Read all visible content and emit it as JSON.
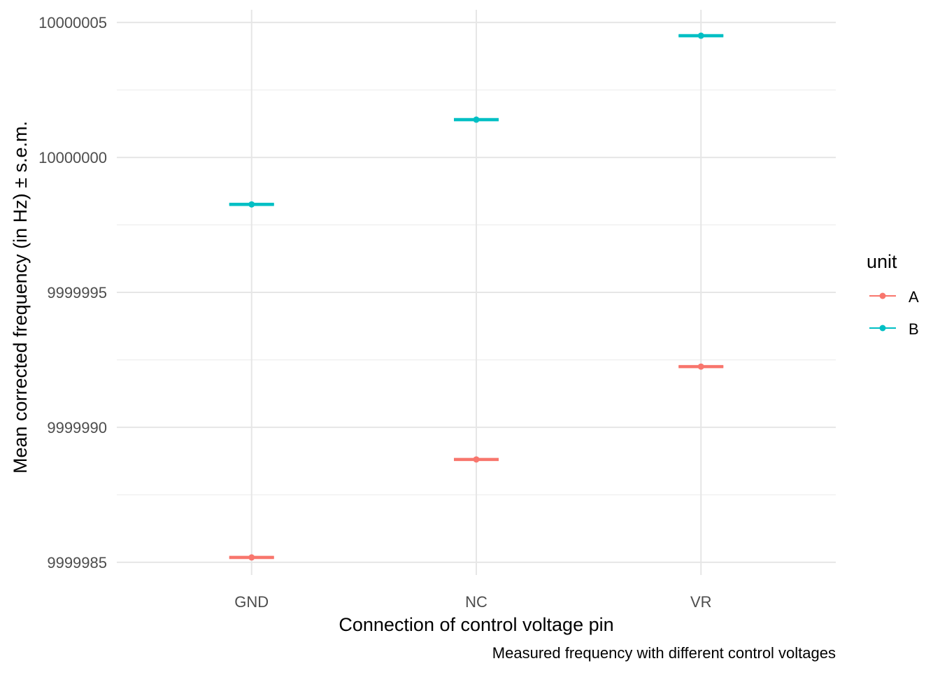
{
  "chart_data": {
    "type": "scatter",
    "title": "",
    "caption": "Measured frequency with different control voltages",
    "xlabel": "Connection of control voltage pin",
    "ylabel": "Mean corrected frequency (in Hz) ± s.e.m.",
    "categories": [
      "GND",
      "NC",
      "VR"
    ],
    "ylim": [
      9999984.53,
      10000005.47
    ],
    "yticks": [
      9999985,
      9999990,
      9999995,
      10000000,
      10000005
    ],
    "ytick_labels": [
      "9999985",
      "9999990",
      "9999995",
      "10000000",
      "10000005"
    ],
    "grid": true,
    "legend": {
      "title": "unit",
      "placement": "right"
    },
    "series": [
      {
        "name": "A",
        "color": "#F8766D",
        "values": [
          9999985.18,
          9999988.81,
          9999992.25
        ],
        "sem": [
          0.02,
          0.02,
          0.02
        ]
      },
      {
        "name": "B",
        "color": "#00BFC4",
        "values": [
          9999998.26,
          10000001.4,
          10000004.51
        ],
        "sem": [
          0.02,
          0.02,
          0.02
        ]
      }
    ]
  }
}
